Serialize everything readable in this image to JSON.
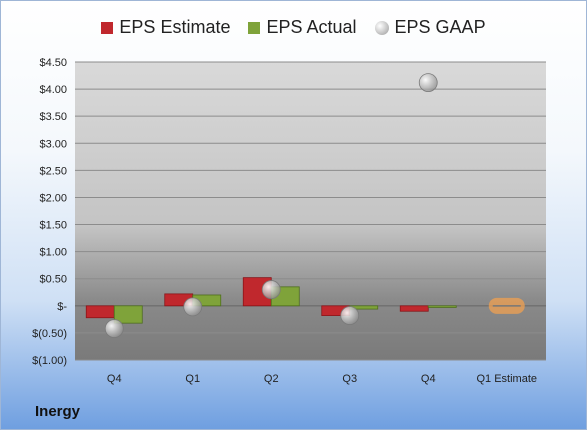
{
  "legend": {
    "estimate": "EPS Estimate",
    "actual": "EPS Actual",
    "gaap": "EPS GAAP"
  },
  "company": "Inergy",
  "colors": {
    "estimate": "#c0282d",
    "actual": "#7fa33a",
    "gaap": "#a8a8a8",
    "q1_estimate_marker": "#f0a050"
  },
  "chart_data": {
    "type": "bar",
    "categories": [
      "Q4",
      "Q1",
      "Q2",
      "Q3",
      "Q4",
      "Q1 Estimate"
    ],
    "series": [
      {
        "name": "EPS Estimate",
        "values": [
          -0.22,
          0.22,
          0.52,
          -0.18,
          -0.1,
          0.0
        ]
      },
      {
        "name": "EPS Actual",
        "values": [
          -0.32,
          0.2,
          0.35,
          -0.06,
          -0.03,
          null
        ]
      },
      {
        "name": "EPS GAAP",
        "values": [
          -0.42,
          -0.02,
          0.3,
          -0.18,
          4.12,
          null
        ]
      }
    ],
    "ylim": [
      -1.0,
      4.5
    ],
    "yticks": [
      4.5,
      4.0,
      3.5,
      3.0,
      2.5,
      2.0,
      1.5,
      1.0,
      0.5,
      0,
      -0.5,
      -1.0
    ],
    "ytick_labels": [
      "$4.50",
      "$4.00",
      "$3.50",
      "$3.00",
      "$2.50",
      "$2.00",
      "$1.50",
      "$1.00",
      "$0.50",
      "$-",
      "$(0.50)",
      "$(1.00)"
    ],
    "grid": true,
    "legend_position": "top"
  }
}
